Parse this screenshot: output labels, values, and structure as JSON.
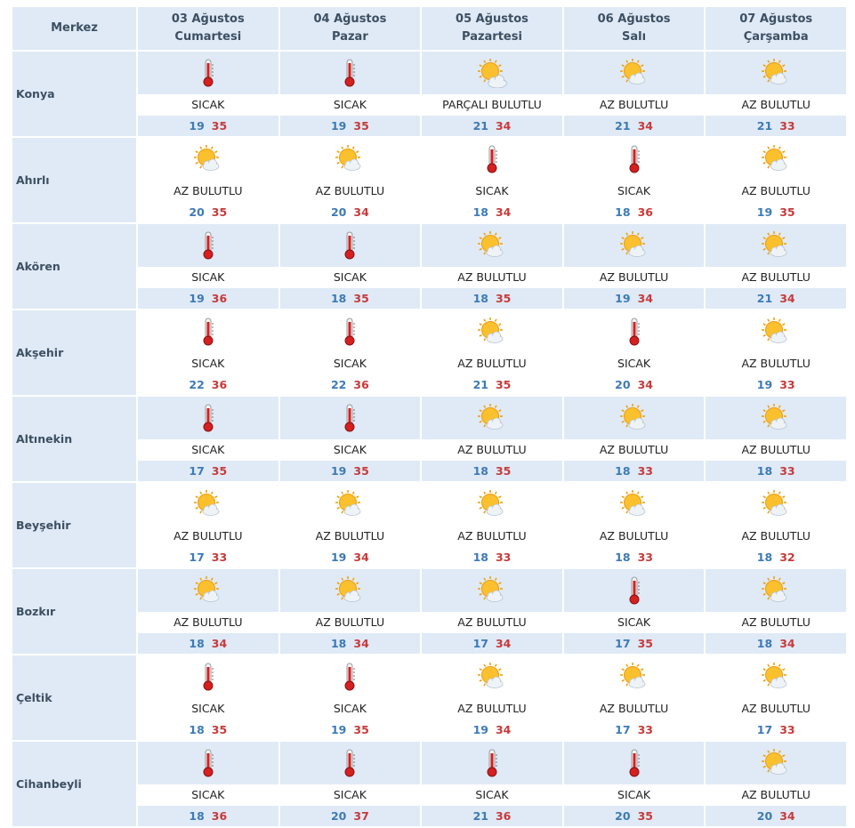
{
  "header": {
    "merkez_label": "Merkez",
    "days": [
      {
        "date": "03 Ağustos",
        "weekday": "Cumartesi"
      },
      {
        "date": "04 Ağustos",
        "weekday": "Pazar"
      },
      {
        "date": "05 Ağustos",
        "weekday": "Pazartesi"
      },
      {
        "date": "06 Ağustos",
        "weekday": "Salı"
      },
      {
        "date": "07 Ağustos",
        "weekday": "Çarşamba"
      }
    ]
  },
  "colors": {
    "min_temp": "#3d7ab8",
    "max_temp": "#c83a3a",
    "header_bg": "#dfeaf6"
  },
  "rows": [
    {
      "city": "Konya",
      "days": [
        {
          "icon": "thermometer-hot-icon",
          "cond": "SICAK",
          "min": "19",
          "max": "35"
        },
        {
          "icon": "thermometer-hot-icon",
          "cond": "SICAK",
          "min": "19",
          "max": "35"
        },
        {
          "icon": "partly-cloudy-icon",
          "cond": "PARÇALI BULUTLU",
          "min": "21",
          "max": "34"
        },
        {
          "icon": "mostly-sunny-icon",
          "cond": "AZ BULUTLU",
          "min": "21",
          "max": "34"
        },
        {
          "icon": "mostly-sunny-icon",
          "cond": "AZ BULUTLU",
          "min": "21",
          "max": "33"
        }
      ]
    },
    {
      "city": "Ahırlı",
      "days": [
        {
          "icon": "mostly-sunny-icon",
          "cond": "AZ BULUTLU",
          "min": "20",
          "max": "35"
        },
        {
          "icon": "mostly-sunny-icon",
          "cond": "AZ BULUTLU",
          "min": "20",
          "max": "34"
        },
        {
          "icon": "thermometer-hot-icon",
          "cond": "SICAK",
          "min": "18",
          "max": "34"
        },
        {
          "icon": "thermometer-hot-icon",
          "cond": "SICAK",
          "min": "18",
          "max": "36"
        },
        {
          "icon": "mostly-sunny-icon",
          "cond": "AZ BULUTLU",
          "min": "19",
          "max": "35"
        }
      ]
    },
    {
      "city": "Akören",
      "days": [
        {
          "icon": "thermometer-hot-icon",
          "cond": "SICAK",
          "min": "19",
          "max": "36"
        },
        {
          "icon": "thermometer-hot-icon",
          "cond": "SICAK",
          "min": "18",
          "max": "35"
        },
        {
          "icon": "mostly-sunny-icon",
          "cond": "AZ BULUTLU",
          "min": "18",
          "max": "35"
        },
        {
          "icon": "mostly-sunny-icon",
          "cond": "AZ BULUTLU",
          "min": "19",
          "max": "34"
        },
        {
          "icon": "mostly-sunny-icon",
          "cond": "AZ BULUTLU",
          "min": "21",
          "max": "34"
        }
      ]
    },
    {
      "city": "Akşehir",
      "days": [
        {
          "icon": "thermometer-hot-icon",
          "cond": "SICAK",
          "min": "22",
          "max": "36"
        },
        {
          "icon": "thermometer-hot-icon",
          "cond": "SICAK",
          "min": "22",
          "max": "36"
        },
        {
          "icon": "mostly-sunny-icon",
          "cond": "AZ BULUTLU",
          "min": "21",
          "max": "35"
        },
        {
          "icon": "thermometer-hot-icon",
          "cond": "SICAK",
          "min": "20",
          "max": "34"
        },
        {
          "icon": "mostly-sunny-icon",
          "cond": "AZ BULUTLU",
          "min": "19",
          "max": "33"
        }
      ]
    },
    {
      "city": "Altınekin",
      "days": [
        {
          "icon": "thermometer-hot-icon",
          "cond": "SICAK",
          "min": "17",
          "max": "35"
        },
        {
          "icon": "thermometer-hot-icon",
          "cond": "SICAK",
          "min": "19",
          "max": "35"
        },
        {
          "icon": "mostly-sunny-icon",
          "cond": "AZ BULUTLU",
          "min": "18",
          "max": "35"
        },
        {
          "icon": "mostly-sunny-icon",
          "cond": "AZ BULUTLU",
          "min": "18",
          "max": "33"
        },
        {
          "icon": "mostly-sunny-icon",
          "cond": "AZ BULUTLU",
          "min": "18",
          "max": "33"
        }
      ]
    },
    {
      "city": "Beyşehir",
      "days": [
        {
          "icon": "mostly-sunny-icon",
          "cond": "AZ BULUTLU",
          "min": "17",
          "max": "33"
        },
        {
          "icon": "mostly-sunny-icon",
          "cond": "AZ BULUTLU",
          "min": "19",
          "max": "34"
        },
        {
          "icon": "mostly-sunny-icon",
          "cond": "AZ BULUTLU",
          "min": "18",
          "max": "33"
        },
        {
          "icon": "mostly-sunny-icon",
          "cond": "AZ BULUTLU",
          "min": "18",
          "max": "33"
        },
        {
          "icon": "mostly-sunny-icon",
          "cond": "AZ BULUTLU",
          "min": "18",
          "max": "32"
        }
      ]
    },
    {
      "city": "Bozkır",
      "days": [
        {
          "icon": "mostly-sunny-icon",
          "cond": "AZ BULUTLU",
          "min": "18",
          "max": "34"
        },
        {
          "icon": "mostly-sunny-icon",
          "cond": "AZ BULUTLU",
          "min": "18",
          "max": "34"
        },
        {
          "icon": "mostly-sunny-icon",
          "cond": "AZ BULUTLU",
          "min": "17",
          "max": "34"
        },
        {
          "icon": "thermometer-hot-icon",
          "cond": "SICAK",
          "min": "17",
          "max": "35"
        },
        {
          "icon": "mostly-sunny-icon",
          "cond": "AZ BULUTLU",
          "min": "18",
          "max": "34"
        }
      ]
    },
    {
      "city": "Çeltik",
      "days": [
        {
          "icon": "thermometer-hot-icon",
          "cond": "SICAK",
          "min": "18",
          "max": "35"
        },
        {
          "icon": "thermometer-hot-icon",
          "cond": "SICAK",
          "min": "19",
          "max": "35"
        },
        {
          "icon": "mostly-sunny-icon",
          "cond": "AZ BULUTLU",
          "min": "19",
          "max": "34"
        },
        {
          "icon": "mostly-sunny-icon",
          "cond": "AZ BULUTLU",
          "min": "17",
          "max": "33"
        },
        {
          "icon": "mostly-sunny-icon",
          "cond": "AZ BULUTLU",
          "min": "17",
          "max": "33"
        }
      ]
    },
    {
      "city": "Cihanbeyli",
      "days": [
        {
          "icon": "thermometer-hot-icon",
          "cond": "SICAK",
          "min": "18",
          "max": "36"
        },
        {
          "icon": "thermometer-hot-icon",
          "cond": "SICAK",
          "min": "20",
          "max": "37"
        },
        {
          "icon": "thermometer-hot-icon",
          "cond": "SICAK",
          "min": "21",
          "max": "36"
        },
        {
          "icon": "thermometer-hot-icon",
          "cond": "SICAK",
          "min": "20",
          "max": "35"
        },
        {
          "icon": "mostly-sunny-icon",
          "cond": "AZ BULUTLU",
          "min": "20",
          "max": "34"
        }
      ]
    }
  ]
}
